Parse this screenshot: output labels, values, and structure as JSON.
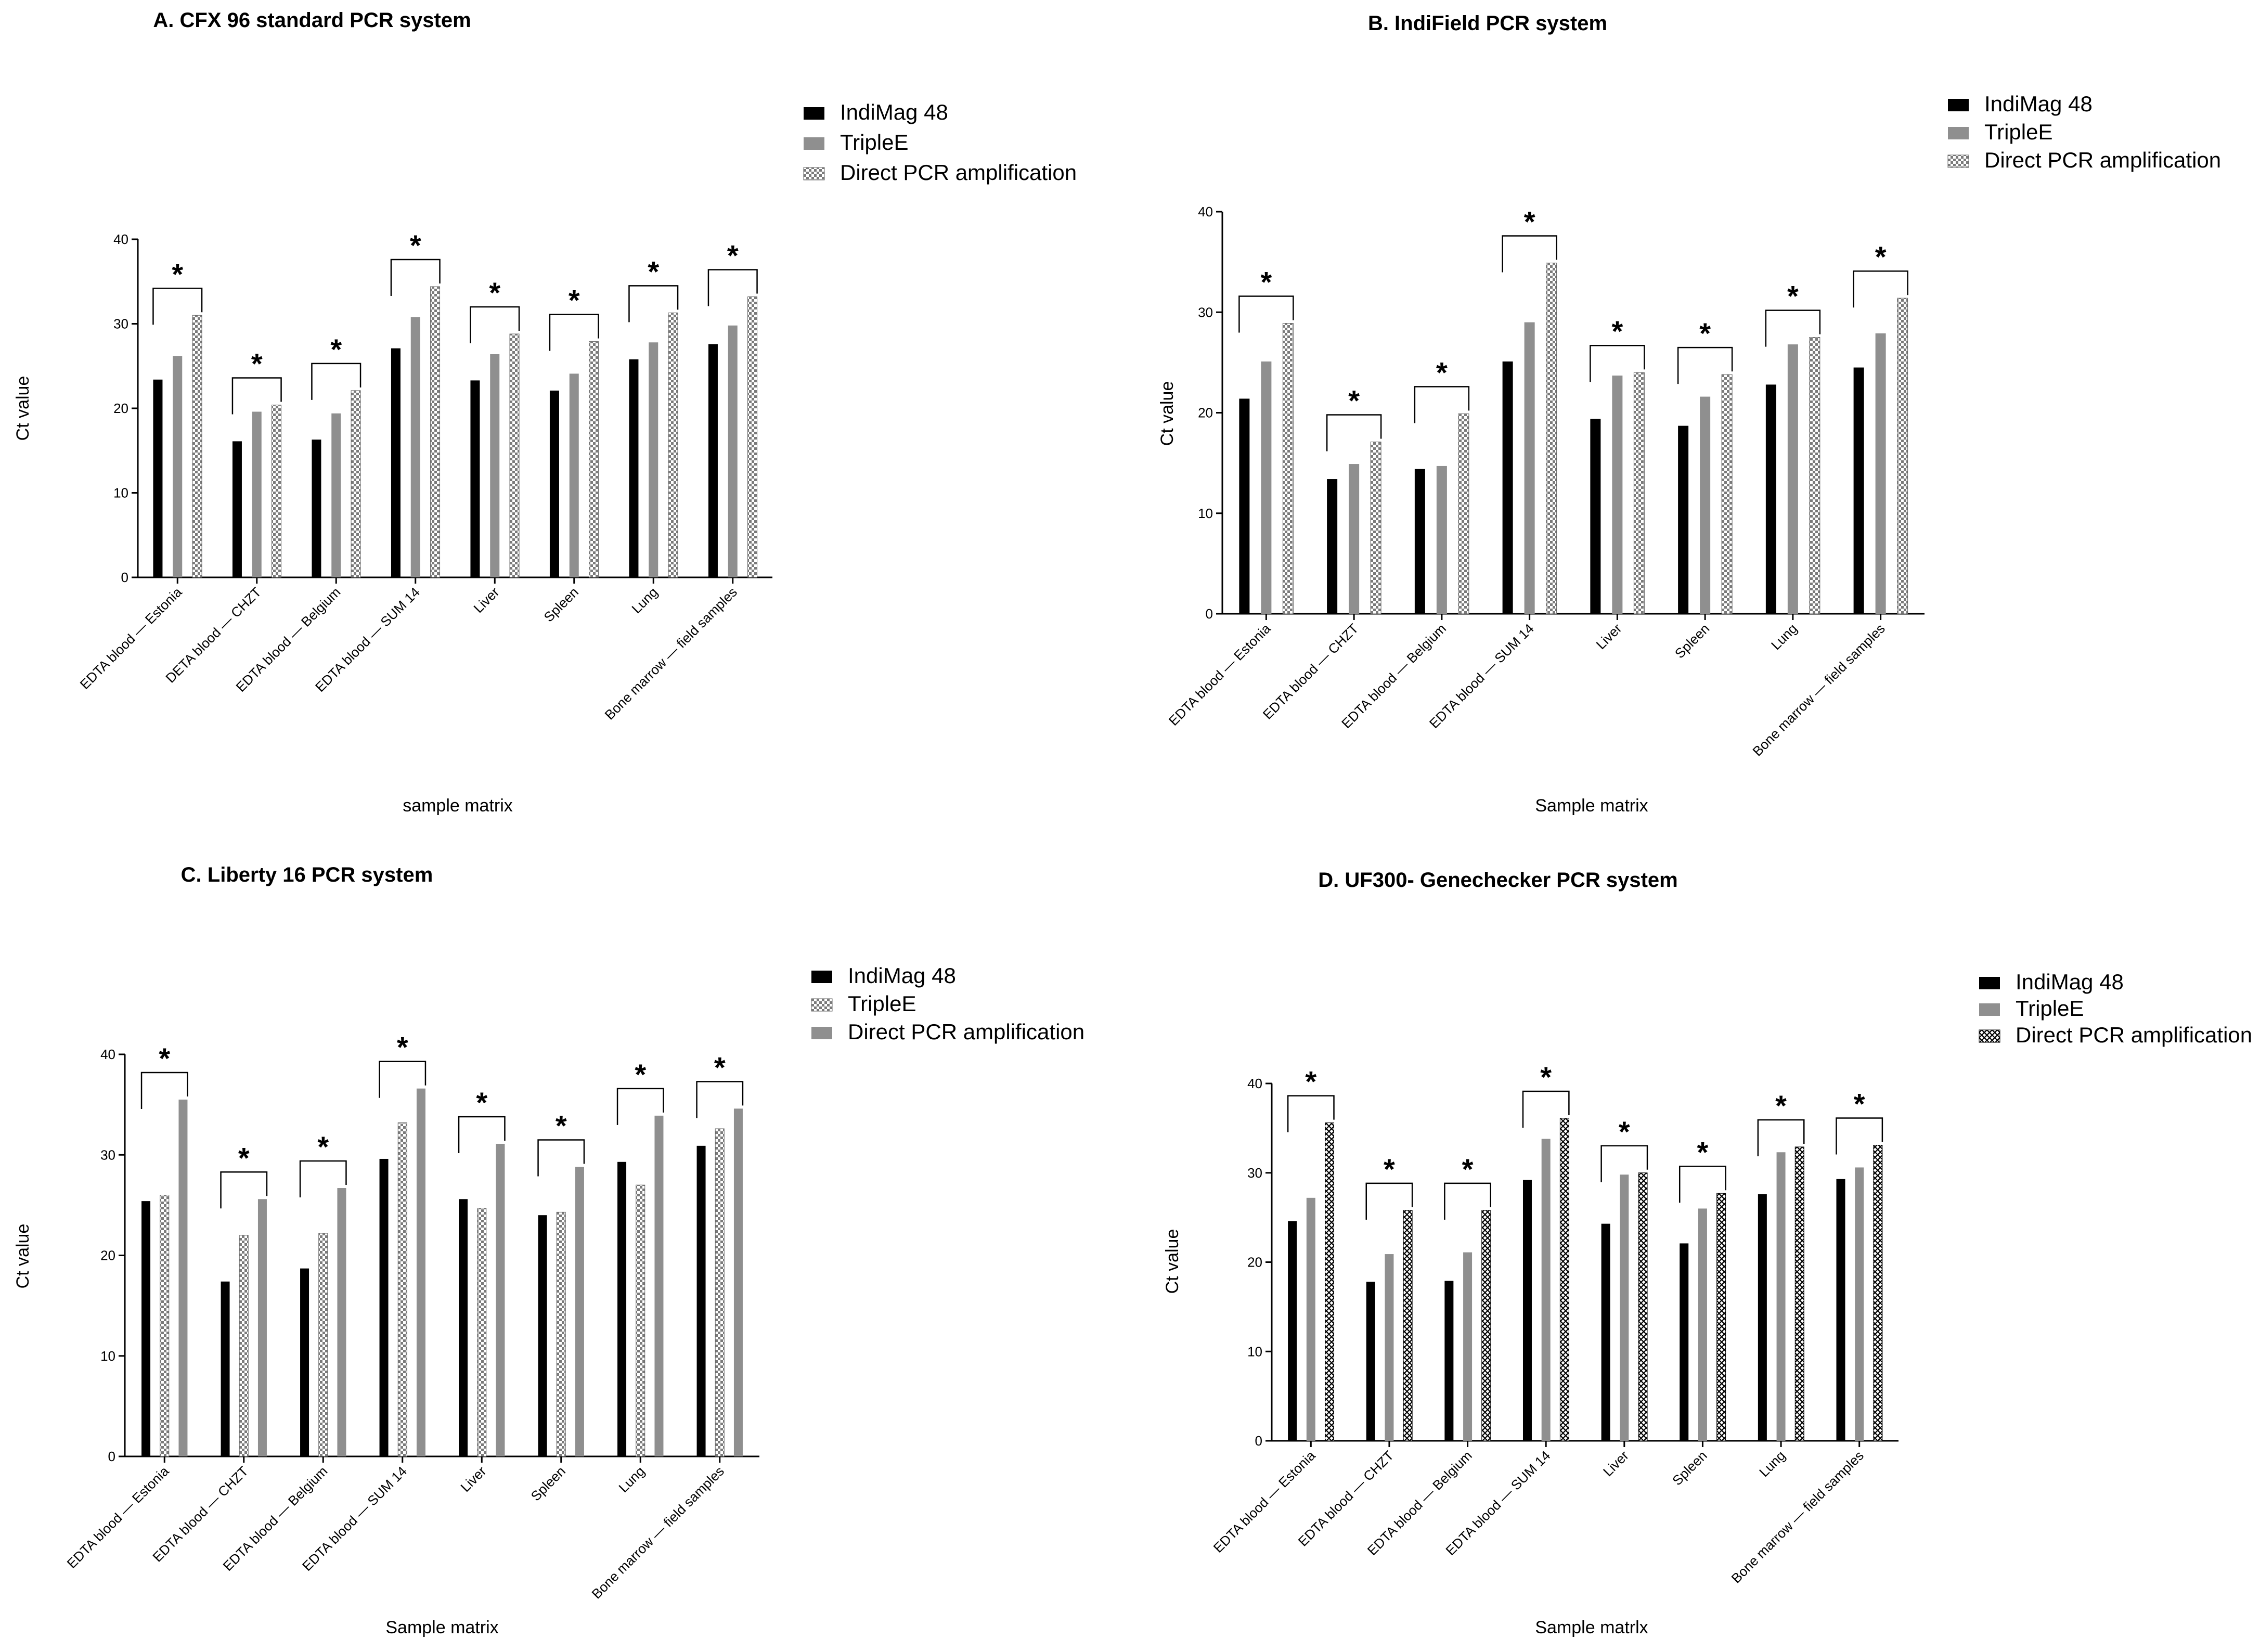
{
  "figure": {
    "panels": 4
  },
  "chart_data": [
    {
      "type": "bar",
      "title": "A.  CFX 96 standard PCR system",
      "xlabel": "sample matrix",
      "ylabel": "Ct value",
      "ylim": [
        0,
        40
      ],
      "yticks": [
        0,
        10,
        20,
        30,
        40
      ],
      "legend_position": "top-right",
      "significance_label": "*",
      "categories": [
        "EDTA blood — Estonia",
        "DETA blood — CHZT",
        "EDTA blood — Belgium",
        "EDTA blood — SUM 14",
        "Liver",
        "Spleen",
        "Lung",
        "Bone marrow — field samples"
      ],
      "series": [
        {
          "name": "IndiMag 48",
          "pattern": "solid-black",
          "values": [
            23.4,
            16.1,
            16.3,
            27.1,
            23.3,
            22.1,
            25.8,
            27.6
          ]
        },
        {
          "name": "TripleE",
          "pattern": "solid-gray",
          "values": [
            26.2,
            19.6,
            19.4,
            30.8,
            26.4,
            24.1,
            27.8,
            29.8
          ]
        },
        {
          "name": "Direct PCR amplification",
          "pattern": "checker",
          "values": [
            31.0,
            20.4,
            22.1,
            34.4,
            28.8,
            27.9,
            31.3,
            33.2
          ]
        }
      ]
    },
    {
      "type": "bar",
      "title": "B.  IndiField PCR system",
      "xlabel": "Sample matrix",
      "ylabel": "Ct value",
      "ylim": [
        0,
        40
      ],
      "yticks": [
        0,
        10,
        20,
        30,
        40
      ],
      "legend_position": "top-right",
      "significance_label": "*",
      "categories": [
        "EDTA blood — Estonia",
        "EDTA blood — CHZT",
        "EDTA blood — Belgium",
        "EDTA blood — SUM 14",
        "Liver",
        "Spleen",
        "Lung",
        "Bone marrow — field samples"
      ],
      "series": [
        {
          "name": "IndiMag 48",
          "pattern": "solid-black",
          "values": [
            21.4,
            13.4,
            14.4,
            25.1,
            19.4,
            18.7,
            22.8,
            24.5
          ]
        },
        {
          "name": "TripleE",
          "pattern": "solid-gray",
          "values": [
            25.1,
            14.9,
            14.7,
            29.0,
            23.7,
            21.6,
            26.8,
            27.9
          ]
        },
        {
          "name": "Direct PCR amplification",
          "pattern": "checker",
          "values": [
            28.9,
            17.1,
            19.9,
            34.9,
            24.0,
            23.8,
            27.5,
            31.4
          ]
        }
      ]
    },
    {
      "type": "bar",
      "title": "C.  Liberty 16 PCR system",
      "xlabel": "Sample matrix",
      "ylabel": "Ct value",
      "ylim": [
        0,
        40
      ],
      "yticks": [
        0,
        10,
        20,
        30,
        40
      ],
      "legend_position": "top-right",
      "significance_label": "*",
      "categories": [
        "EDTA blood — Estonia",
        "EDTA blood — CHZT",
        "EDTA blood — Belgium",
        "EDTA blood — SUM 14",
        "Liver",
        "Spleen",
        "Lung",
        "Bone marrow — field samples"
      ],
      "series": [
        {
          "name": "IndiMag 48",
          "pattern": "solid-black",
          "values": [
            25.4,
            17.4,
            18.7,
            29.6,
            25.6,
            24.0,
            29.3,
            30.9
          ]
        },
        {
          "name": "TripleE",
          "pattern": "checker",
          "values": [
            26.0,
            22.0,
            22.2,
            33.2,
            24.7,
            24.3,
            27.0,
            32.6
          ]
        },
        {
          "name": "Direct PCR amplification",
          "pattern": "solid-gray",
          "values": [
            35.5,
            25.6,
            26.7,
            36.6,
            31.1,
            28.8,
            33.9,
            34.6
          ]
        }
      ]
    },
    {
      "type": "bar",
      "title": "D.  UF300- Genechecker PCR system",
      "xlabel": "Sample matrlx",
      "ylabel": "Ct value",
      "ylim": [
        0,
        40
      ],
      "yticks": [
        0,
        10,
        20,
        30,
        40
      ],
      "legend_position": "top-right",
      "significance_label": "*",
      "categories": [
        "EDTA blood — Estonia",
        "EDTA blood — CHZT",
        "EDTA blood — Belgium",
        "EDTA blood — SUM 14",
        "Liver",
        "Spleen",
        "Lung",
        "Bone marrow — field samples"
      ],
      "series": [
        {
          "name": "IndiMag 48",
          "pattern": "solid-black",
          "values": [
            24.6,
            17.8,
            17.9,
            29.2,
            24.3,
            22.1,
            27.6,
            29.3
          ]
        },
        {
          "name": "TripleE",
          "pattern": "solid-gray",
          "values": [
            27.2,
            20.9,
            21.1,
            33.8,
            29.8,
            26.0,
            32.3,
            30.6
          ]
        },
        {
          "name": "Direct PCR amplification",
          "pattern": "cross",
          "values": [
            35.6,
            25.8,
            25.8,
            36.1,
            30.0,
            27.7,
            32.9,
            33.1
          ]
        }
      ]
    }
  ]
}
